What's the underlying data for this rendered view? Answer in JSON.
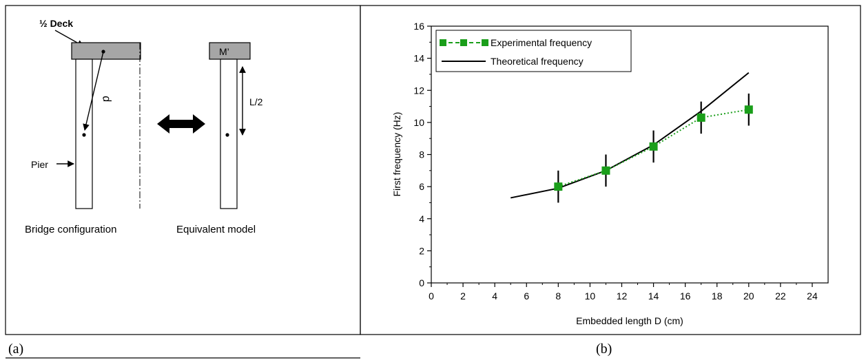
{
  "panel_a": {
    "caption": "(a)",
    "deck_label": "½ Deck",
    "mass_label": "M’",
    "d_label": "d",
    "half_length_label": "L/2",
    "pier_label": "Pier",
    "left_title": "Bridge configuration",
    "right_title": "Equivalent model"
  },
  "panel_b": {
    "caption": "(b)"
  },
  "chart_data": {
    "type": "line",
    "xlabel": "Embedded length D (cm)",
    "ylabel": "First frequency (Hz)",
    "xlim": [
      0,
      25
    ],
    "ylim": [
      0,
      16
    ],
    "xticks": [
      0,
      2,
      4,
      6,
      8,
      10,
      12,
      14,
      16,
      18,
      20,
      22,
      24
    ],
    "yticks": [
      0,
      2,
      4,
      6,
      8,
      10,
      12,
      14,
      16
    ],
    "legend_position": "top-left",
    "series": [
      {
        "name": "Experimental frequency",
        "color": "#1a9e1a",
        "style": "dotted-with-square-markers",
        "x": [
          8,
          11,
          14,
          17,
          20
        ],
        "y": [
          6.0,
          7.0,
          8.5,
          10.3,
          10.8
        ],
        "error": [
          1.0,
          1.0,
          1.0,
          1.0,
          1.0
        ]
      },
      {
        "name": "Theoretical frequency",
        "color": "#000000",
        "style": "solid",
        "x": [
          5,
          8,
          11,
          14,
          17,
          20
        ],
        "y": [
          5.3,
          5.9,
          7.0,
          8.6,
          10.7,
          13.1
        ]
      }
    ]
  }
}
